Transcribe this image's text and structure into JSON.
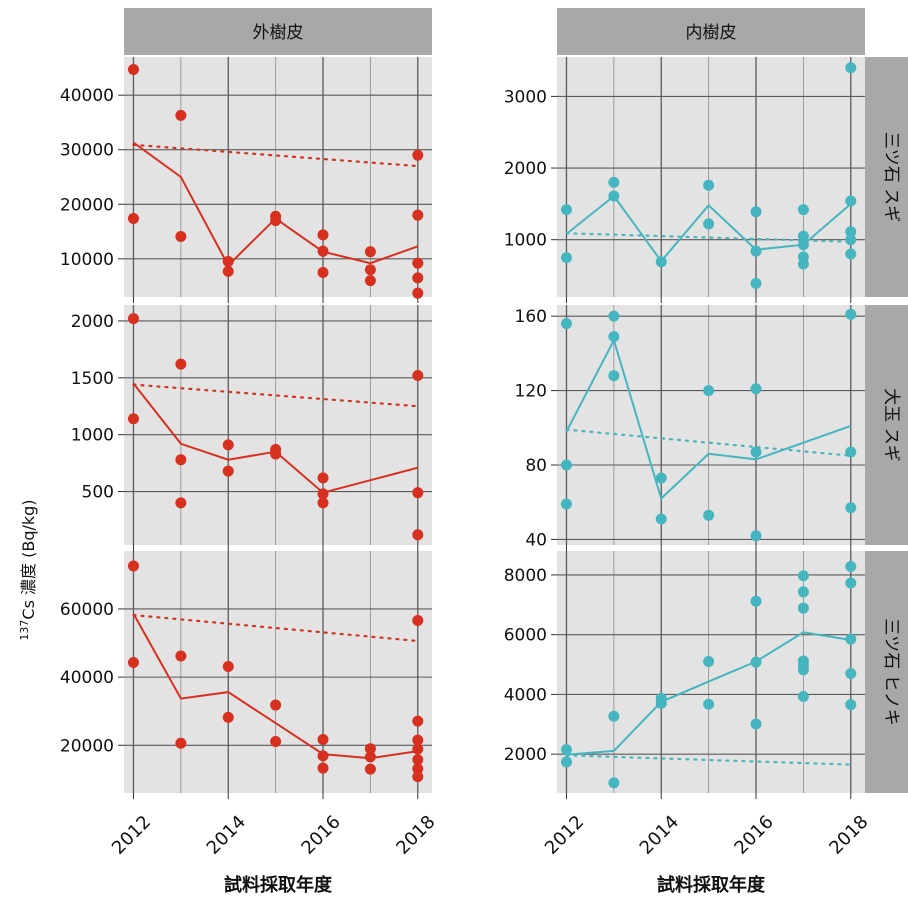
{
  "figure": {
    "ylabel_prefix": "137",
    "ylabel_main": "Cs 濃度 (Bq/kg)",
    "xlabel_left": "試料採取年度",
    "xlabel_right": "試料採取年度",
    "columns": [
      "外樹皮",
      "内樹皮"
    ],
    "rows": [
      "三ツ石 スギ",
      "大玉 スギ",
      "三ツ石 ヒノキ"
    ],
    "colors": {
      "outer": "#d7301f",
      "inner": "#45b5c0",
      "panel_bg": "#e3e3e3",
      "strip_bg": "#a8a8a8"
    }
  },
  "chart_data": [
    {
      "type": "scatter",
      "column": "外樹皮",
      "row": "三ツ石 スギ",
      "xlim": [
        2011.8,
        2018.3
      ],
      "ylim": [
        3000,
        47000
      ],
      "xticks": [
        "2012",
        "2014",
        "2016",
        "2018"
      ],
      "yticks": [
        10000,
        20000,
        30000,
        40000
      ],
      "points": [
        [
          2012,
          44700
        ],
        [
          2012,
          17400
        ],
        [
          2013,
          36300
        ],
        [
          2013,
          14100
        ],
        [
          2014,
          9500
        ],
        [
          2014,
          7700
        ],
        [
          2015,
          17800
        ],
        [
          2015,
          17000
        ],
        [
          2016,
          14400
        ],
        [
          2016,
          11400
        ],
        [
          2016,
          7500
        ],
        [
          2017,
          11300
        ],
        [
          2017,
          8000
        ],
        [
          2017,
          6000
        ],
        [
          2018,
          29000
        ],
        [
          2018,
          18000
        ],
        [
          2018,
          9200
        ],
        [
          2018,
          6500
        ],
        [
          2018,
          3700
        ]
      ],
      "mean_line": [
        [
          2012,
          31300
        ],
        [
          2013,
          25000
        ],
        [
          2014,
          8800
        ],
        [
          2015,
          17400
        ],
        [
          2016,
          11300
        ],
        [
          2017,
          9200
        ],
        [
          2018,
          12300
        ]
      ],
      "trend_line": [
        [
          2012,
          30900
        ],
        [
          2018,
          27000
        ]
      ]
    },
    {
      "type": "scatter",
      "column": "内樹皮",
      "row": "三ツ石 スギ",
      "xlim": [
        2011.8,
        2018.3
      ],
      "ylim": [
        200,
        3550
      ],
      "xticks": [
        "2012",
        "2014",
        "2016",
        "2018"
      ],
      "yticks": [
        1000,
        2000,
        3000
      ],
      "points": [
        [
          2012,
          1420
        ],
        [
          2012,
          750
        ],
        [
          2013,
          1800
        ],
        [
          2013,
          1610
        ],
        [
          2014,
          690
        ],
        [
          2015,
          1760
        ],
        [
          2015,
          1220
        ],
        [
          2016,
          1390
        ],
        [
          2016,
          840
        ],
        [
          2016,
          390
        ],
        [
          2017,
          1420
        ],
        [
          2017,
          1050
        ],
        [
          2017,
          930
        ],
        [
          2017,
          760
        ],
        [
          2017,
          660
        ],
        [
          2018,
          3400
        ],
        [
          2018,
          1540
        ],
        [
          2018,
          1110
        ],
        [
          2018,
          1000
        ],
        [
          2018,
          800
        ]
      ],
      "mean_line": [
        [
          2012,
          1080
        ],
        [
          2013,
          1610
        ],
        [
          2014,
          700
        ],
        [
          2015,
          1480
        ],
        [
          2016,
          860
        ],
        [
          2017,
          930
        ],
        [
          2018,
          1500
        ]
      ],
      "trend_line": [
        [
          2012,
          1090
        ],
        [
          2018,
          970
        ]
      ]
    },
    {
      "type": "scatter",
      "column": "外樹皮",
      "row": "大玉 スギ",
      "xlim": [
        2011.8,
        2018.3
      ],
      "ylim": [
        30,
        2140
      ],
      "xticks": [
        "2012",
        "2014",
        "2016",
        "2018"
      ],
      "yticks": [
        500,
        1000,
        1500,
        2000
      ],
      "points": [
        [
          2012,
          2020
        ],
        [
          2012,
          1140
        ],
        [
          2013,
          1620
        ],
        [
          2013,
          780
        ],
        [
          2013,
          400
        ],
        [
          2014,
          910
        ],
        [
          2014,
          680
        ],
        [
          2015,
          870
        ],
        [
          2015,
          830
        ],
        [
          2016,
          620
        ],
        [
          2016,
          480
        ],
        [
          2016,
          400
        ],
        [
          2018,
          1520
        ],
        [
          2018,
          490
        ],
        [
          2018,
          120
        ]
      ],
      "mean_line": [
        [
          2012,
          1450
        ],
        [
          2013,
          920
        ],
        [
          2014,
          780
        ],
        [
          2015,
          850
        ],
        [
          2016,
          490
        ],
        [
          2018,
          710
        ]
      ],
      "trend_line": [
        [
          2012,
          1440
        ],
        [
          2018,
          1250
        ]
      ]
    },
    {
      "type": "scatter",
      "column": "内樹皮",
      "row": "大玉 スギ",
      "xlim": [
        2011.8,
        2018.3
      ],
      "ylim": [
        37,
        166
      ],
      "xticks": [
        "2012",
        "2014",
        "2016",
        "2018"
      ],
      "yticks": [
        40,
        80,
        120,
        160
      ],
      "points": [
        [
          2012,
          156
        ],
        [
          2012,
          80
        ],
        [
          2012,
          59
        ],
        [
          2013,
          160
        ],
        [
          2013,
          149
        ],
        [
          2013,
          128
        ],
        [
          2014,
          73
        ],
        [
          2014,
          51
        ],
        [
          2015,
          120
        ],
        [
          2015,
          53
        ],
        [
          2016,
          121
        ],
        [
          2016,
          87
        ],
        [
          2016,
          42
        ],
        [
          2018,
          161
        ],
        [
          2018,
          87
        ],
        [
          2018,
          57
        ]
      ],
      "mean_line": [
        [
          2012,
          98
        ],
        [
          2013,
          147
        ],
        [
          2014,
          62
        ],
        [
          2015,
          86
        ],
        [
          2016,
          83
        ],
        [
          2018,
          101
        ]
      ],
      "trend_line": [
        [
          2012,
          99
        ],
        [
          2018,
          85
        ]
      ]
    },
    {
      "type": "scatter",
      "column": "外樹皮",
      "row": "三ツ石 ヒノキ",
      "xlim": [
        2011.8,
        2018.3
      ],
      "ylim": [
        6000,
        77000
      ],
      "xticks": [
        "2012",
        "2014",
        "2016",
        "2018"
      ],
      "yticks": [
        20000,
        40000,
        60000
      ],
      "points": [
        [
          2012,
          72600
        ],
        [
          2012,
          44300
        ],
        [
          2013,
          46200
        ],
        [
          2013,
          20600
        ],
        [
          2014,
          43100
        ],
        [
          2014,
          28200
        ],
        [
          2015,
          31800
        ],
        [
          2015,
          21100
        ],
        [
          2016,
          21700
        ],
        [
          2016,
          16900
        ],
        [
          2016,
          13300
        ],
        [
          2017,
          19000
        ],
        [
          2017,
          16600
        ],
        [
          2017,
          13000
        ],
        [
          2018,
          56600
        ],
        [
          2018,
          27100
        ],
        [
          2018,
          21500
        ],
        [
          2018,
          18900
        ],
        [
          2018,
          15800
        ],
        [
          2018,
          13100
        ],
        [
          2018,
          10800
        ]
      ],
      "mean_line": [
        [
          2012,
          58600
        ],
        [
          2013,
          33700
        ],
        [
          2014,
          35600
        ],
        [
          2015,
          26500
        ],
        [
          2016,
          17400
        ],
        [
          2017,
          16200
        ],
        [
          2018,
          18300
        ]
      ],
      "trend_line": [
        [
          2012,
          58200
        ],
        [
          2018,
          50600
        ]
      ]
    },
    {
      "type": "scatter",
      "column": "内樹皮",
      "row": "三ツ石 ヒノキ",
      "xlim": [
        2011.8,
        2018.3
      ],
      "ylim": [
        700,
        8800
      ],
      "xticks": [
        "2012",
        "2014",
        "2016",
        "2018"
      ],
      "yticks": [
        2000,
        4000,
        6000,
        8000
      ],
      "points": [
        [
          2012,
          2150
        ],
        [
          2012,
          1740
        ],
        [
          2013,
          3270
        ],
        [
          2013,
          1040
        ],
        [
          2014,
          3870
        ],
        [
          2014,
          3700
        ],
        [
          2015,
          5100
        ],
        [
          2015,
          3670
        ],
        [
          2016,
          7120
        ],
        [
          2016,
          5080
        ],
        [
          2016,
          3010
        ],
        [
          2017,
          7970
        ],
        [
          2017,
          7430
        ],
        [
          2017,
          6890
        ],
        [
          2017,
          5120
        ],
        [
          2017,
          4970
        ],
        [
          2017,
          4820
        ],
        [
          2017,
          3930
        ],
        [
          2018,
          8280
        ],
        [
          2018,
          7730
        ],
        [
          2018,
          5850
        ],
        [
          2018,
          4700
        ],
        [
          2018,
          3660
        ]
      ],
      "mean_line": [
        [
          2012,
          1980
        ],
        [
          2013,
          2110
        ],
        [
          2014,
          3750
        ],
        [
          2015,
          4430
        ],
        [
          2016,
          5100
        ],
        [
          2017,
          6080
        ],
        [
          2018,
          5820
        ]
      ],
      "trend_line": [
        [
          2012,
          1960
        ],
        [
          2018,
          1650
        ]
      ]
    }
  ]
}
